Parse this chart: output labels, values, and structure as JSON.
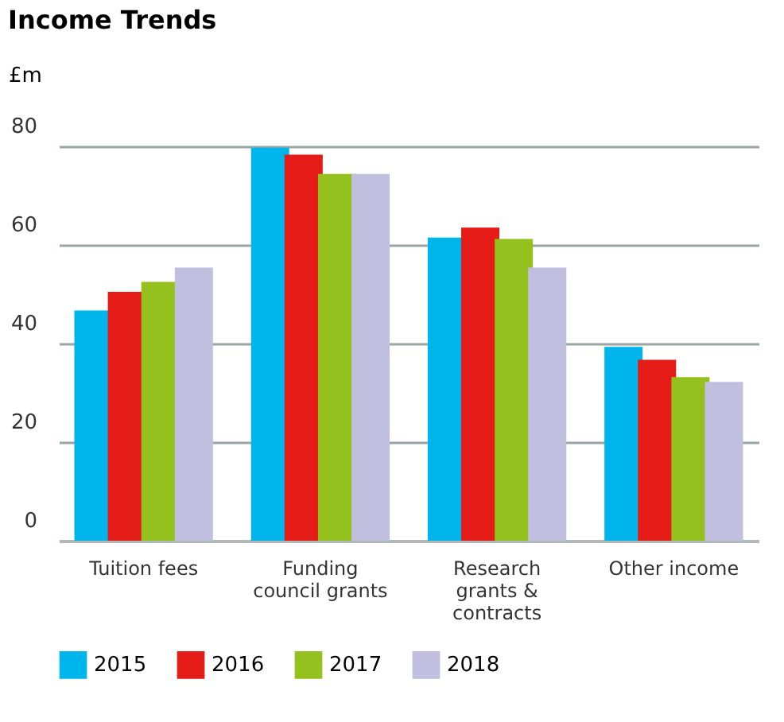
{
  "chart_data": {
    "type": "bar",
    "title": "Income Trends",
    "ylabel": "£m",
    "categories": [
      "Tuition fees",
      "Funding council grants",
      "Research grants & contracts",
      "Other income"
    ],
    "series": [
      {
        "name": "2015",
        "color": "#00b4ec",
        "values": [
          46.7,
          79.7,
          61.5,
          39.3
        ]
      },
      {
        "name": "2016",
        "color": "#e41b17",
        "values": [
          50.5,
          78.3,
          63.5,
          36.7
        ]
      },
      {
        "name": "2017",
        "color": "#95c11f",
        "values": [
          52.5,
          74.4,
          61.2,
          33.2
        ]
      },
      {
        "name": "2018",
        "color": "#c0bfe0",
        "values": [
          55.4,
          74.4,
          55.4,
          32.2
        ]
      }
    ],
    "ylim": [
      0,
      80
    ],
    "yticks": [
      0,
      20,
      40,
      60,
      80
    ],
    "grid": "y",
    "legend": "bottom"
  }
}
